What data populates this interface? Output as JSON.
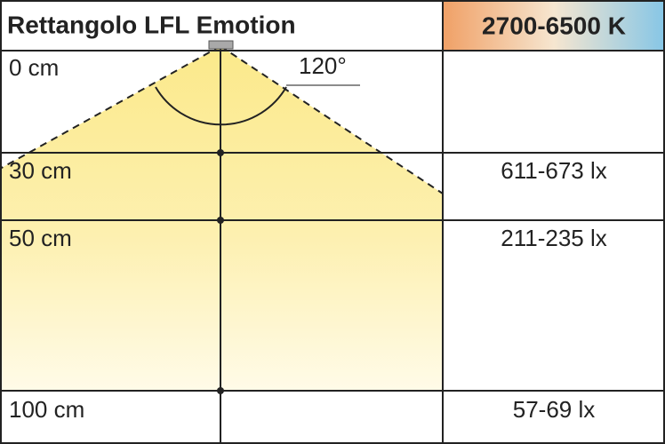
{
  "header": {
    "title": "Rettangolo LFL Emotion",
    "color_temperature": "2700-6500 K"
  },
  "beam_angle": "120°",
  "rows": [
    {
      "distance": "0 cm"
    },
    {
      "distance": "30 cm",
      "illuminance": "611-673 lx"
    },
    {
      "distance": "50 cm",
      "illuminance": "211-235 lx"
    },
    {
      "distance": "100 cm",
      "illuminance": "57-69 lx"
    }
  ]
}
